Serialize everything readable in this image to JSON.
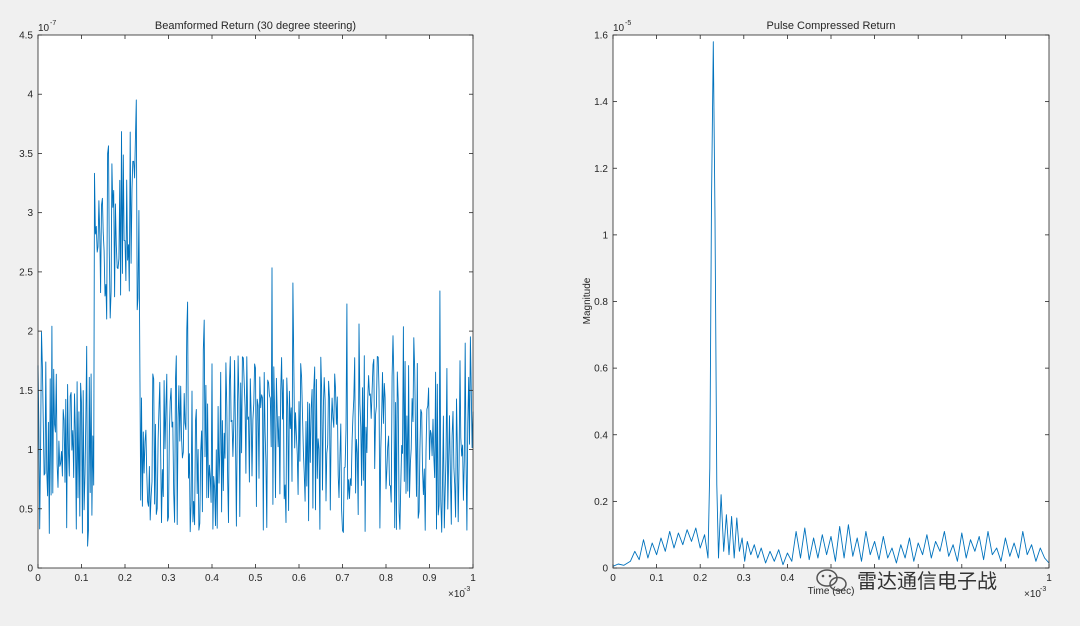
{
  "colors": {
    "background": "#f0f0f0",
    "axes_background": "#ffffff",
    "series": "#0072bd",
    "axis": "#262626"
  },
  "watermark": {
    "icon": "wechat-icon",
    "text": "雷达通信电子战"
  },
  "chart_data": [
    {
      "type": "line",
      "title": "Beamformed Return (30 degree steering)",
      "xlabel": "",
      "ylabel": "",
      "xlim": [
        0,
        0.001
      ],
      "ylim": [
        0,
        4.5e-07
      ],
      "x_exponent_label": "×10",
      "x_exponent": "-3",
      "y_exponent_label": "10",
      "y_exponent": "-7",
      "xticks": [
        0,
        0.1,
        0.2,
        0.3,
        0.4,
        0.5,
        0.6,
        0.7,
        0.8,
        0.9,
        1
      ],
      "xtick_labels": [
        "0",
        "0.1",
        "0.2",
        "0.3",
        "0.4",
        "0.5",
        "0.6",
        "0.7",
        "0.8",
        "0.9",
        "1"
      ],
      "yticks": [
        0,
        0.5,
        1,
        1.5,
        2,
        2.5,
        3,
        3.5,
        4,
        4.5
      ],
      "ytick_labels": [
        "0",
        "0.5",
        "1",
        "1.5",
        "2",
        "2.5",
        "3",
        "3.5",
        "4",
        "4.5"
      ],
      "tick_scale_x": 0.001,
      "tick_scale_y": 1e-07,
      "grid": false,
      "series": [
        {
          "x_start": 0,
          "x_step": 2e-06,
          "segments": [
            {
              "x_from": 0,
              "x_to": 0.000128,
              "level": 9.5e-08,
              "spread": 8e-08,
              "peak": 2.35e-07
            },
            {
              "x_from": 0.00013,
              "x_to": 0.000232,
              "level": 2.9e-07,
              "spread": 8e-08,
              "peak": 4.45e-07
            },
            {
              "x_from": 0.000236,
              "x_to": 0.001,
              "level": 1.05e-07,
              "spread": 7.5e-08,
              "peak": 2.8e-07
            }
          ],
          "gaps": [
            [
              0.000128,
              0.00013
            ],
            [
              0.000232,
              0.000236
            ]
          ]
        }
      ]
    },
    {
      "type": "line",
      "title": "Pulse Compressed Return",
      "xlabel": "Time (sec)",
      "ylabel": "Magnitude",
      "xlim": [
        0,
        0.001
      ],
      "ylim": [
        0,
        1.6e-05
      ],
      "x_exponent_label": "×10",
      "x_exponent": "-3",
      "y_exponent_label": "10",
      "y_exponent": "-5",
      "xticks": [
        0,
        0.1,
        0.2,
        0.3,
        0.4,
        0.5,
        0.6,
        0.7,
        0.8,
        0.9,
        1
      ],
      "xtick_labels": [
        "0",
        "0.1",
        "0.2",
        "0.3",
        "0.4",
        "",
        "",
        "",
        "",
        "",
        "1"
      ],
      "yticks": [
        0,
        0.2,
        0.4,
        0.6,
        0.8,
        1,
        1.2,
        1.4,
        1.6
      ],
      "ytick_labels": [
        "0",
        "0.2",
        "0.4",
        "0.6",
        "0.8",
        "1",
        "1.2",
        "1.4",
        "1.6"
      ],
      "tick_scale_x": 0.001,
      "tick_scale_y": 1e-05,
      "grid": false,
      "series": [
        {
          "x": [
            0,
            1.2e-05,
            2.5e-05,
            4e-05,
            5e-05,
            6e-05,
            7e-05,
            8e-05,
            9e-05,
            0.0001,
            0.00011,
            0.00012,
            0.00013,
            0.00014,
            0.00015,
            0.00016,
            0.00017,
            0.00018,
            0.00019,
            0.0002,
            0.00021,
            0.000218,
            0.000222,
            0.000226,
            0.00023,
            0.000234,
            0.000238,
            0.000242,
            0.000248,
            0.000254,
            0.00026,
            0.000266,
            0.000272,
            0.000278,
            0.000284,
            0.00029,
            0.000296,
            0.000302,
            0.000308,
            0.000316,
            0.000324,
            0.000332,
            0.00034,
            0.00035,
            0.00036,
            0.00037,
            0.00038,
            0.00039,
            0.0004,
            0.00041,
            0.00042,
            0.00043,
            0.00044,
            0.00045,
            0.00046,
            0.00047,
            0.00048,
            0.00049,
            0.0005,
            0.00051,
            0.00052,
            0.00053,
            0.00054,
            0.00055,
            0.00056,
            0.00057,
            0.00058,
            0.00059,
            0.0006,
            0.00061,
            0.00062,
            0.00063,
            0.00064,
            0.00065,
            0.00066,
            0.00067,
            0.00068,
            0.00069,
            0.0007,
            0.00071,
            0.00072,
            0.00073,
            0.00074,
            0.00075,
            0.00076,
            0.00077,
            0.00078,
            0.00079,
            0.0008,
            0.00081,
            0.00082,
            0.00083,
            0.00084,
            0.00085,
            0.00086,
            0.00087,
            0.00088,
            0.00089,
            0.0009,
            0.00091,
            0.00092,
            0.00093,
            0.00094,
            0.00095,
            0.00096,
            0.00097,
            0.00098,
            0.00099,
            0.001
          ],
          "y": [
            5e-08,
            1.2e-07,
            8e-08,
            2e-07,
            5e-07,
            2.5e-07,
            8.5e-07,
            3e-07,
            7.5e-07,
            4e-07,
            9e-07,
            5e-07,
            1.1e-06,
            6e-07,
            1.05e-06,
            7e-07,
            1.15e-06,
            8e-07,
            1.2e-06,
            6e-07,
            1e-06,
            3e-07,
            3e-06,
            1.1e-05,
            1.58e-05,
            1.05e-05,
            2.5e-06,
            3e-07,
            2.2e-06,
            5e-07,
            1.6e-06,
            4e-07,
            1.55e-06,
            3e-07,
            1.5e-06,
            5e-07,
            9e-07,
            2e-07,
            8e-07,
            4e-07,
            7e-07,
            3e-07,
            6e-07,
            1.5e-07,
            5e-07,
            2e-07,
            5.5e-07,
            1e-07,
            4.5e-07,
            2e-07,
            1.1e-06,
            3e-07,
            1.2e-06,
            2.5e-07,
            9e-07,
            3e-07,
            1e-06,
            4e-07,
            9.5e-07,
            2e-07,
            1.25e-06,
            3e-07,
            1.3e-06,
            3.5e-07,
            9e-07,
            2e-07,
            1.1e-06,
            4e-07,
            8e-07,
            2.5e-07,
            9.5e-07,
            3e-07,
            6e-07,
            1.5e-07,
            7e-07,
            3e-07,
            9e-07,
            2e-07,
            7.5e-07,
            4e-07,
            1e-06,
            3e-07,
            8e-07,
            5e-07,
            1.1e-06,
            3.5e-07,
            7e-07,
            2e-07,
            1.05e-06,
            3e-07,
            8.5e-07,
            5e-07,
            9.5e-07,
            2.5e-07,
            1.1e-06,
            4e-07,
            6e-07,
            2e-07,
            9e-07,
            3.5e-07,
            7.5e-07,
            3e-07,
            1.1e-06,
            4e-07,
            7e-07,
            2e-07,
            6e-07,
            3e-07,
            1.5e-07
          ]
        }
      ]
    }
  ]
}
